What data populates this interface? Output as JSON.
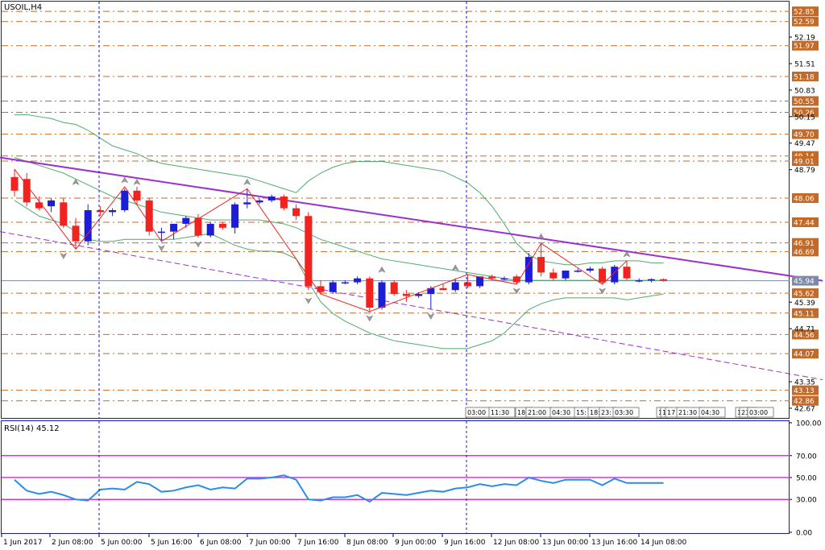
{
  "chart_data": [
    {
      "type": "candlestick",
      "title": "USOIL,H4",
      "ylim": [
        42.4,
        53.1
      ],
      "y_ticks": [
        52.19,
        51.51,
        50.83,
        50.15,
        49.47,
        48.79,
        45.39,
        44.71,
        43.35,
        42.67
      ],
      "level_labels": [
        52.85,
        52.59,
        51.97,
        51.18,
        50.55,
        50.26,
        49.7,
        49.14,
        49.01,
        48.06,
        47.44,
        46.91,
        46.69,
        45.62,
        45.11,
        44.56,
        44.07,
        43.13,
        42.86
      ],
      "current_price": 45.94,
      "x_labels": [
        "1 Jun 2017",
        "2 Jun 08:00",
        "5 Jun 00:00",
        "5 Jun 16:00",
        "6 Jun 08:00",
        "7 Jun 00:00",
        "7 Jun 16:00",
        "8 Jun 08:00",
        "9 Jun 00:00",
        "9 Jun 16:00",
        "12 Jun 08:00",
        "13 Jun 00:00",
        "13 Jun 16:00",
        "14 Jun 08:00"
      ],
      "time_tags": [
        "03:00",
        "11:30",
        "18:",
        "21:00",
        "04:30",
        "15:",
        "18:",
        "23:",
        "03:30",
        "1",
        "1",
        "17",
        "21:30",
        "04:30",
        "17:3",
        "23:",
        "03:00"
      ],
      "candles": [
        {
          "o": 48.6,
          "h": 48.8,
          "l": 48.1,
          "c": 48.25
        },
        {
          "o": 48.55,
          "h": 48.7,
          "l": 47.85,
          "c": 47.95
        },
        {
          "o": 47.95,
          "h": 48.1,
          "l": 47.75,
          "c": 47.8
        },
        {
          "o": 47.85,
          "h": 48.05,
          "l": 47.7,
          "c": 48.0
        },
        {
          "o": 47.95,
          "h": 48.05,
          "l": 47.3,
          "c": 47.35
        },
        {
          "o": 47.35,
          "h": 47.55,
          "l": 46.75,
          "c": 46.95
        },
        {
          "o": 46.95,
          "h": 47.9,
          "l": 46.85,
          "c": 47.75
        },
        {
          "o": 47.75,
          "h": 47.85,
          "l": 47.6,
          "c": 47.7
        },
        {
          "o": 47.7,
          "h": 47.8,
          "l": 47.6,
          "c": 47.75
        },
        {
          "o": 47.75,
          "h": 48.3,
          "l": 47.7,
          "c": 48.25
        },
        {
          "o": 48.25,
          "h": 48.35,
          "l": 47.9,
          "c": 48.0
        },
        {
          "o": 48.0,
          "h": 48.05,
          "l": 47.1,
          "c": 47.2
        },
        {
          "o": 47.2,
          "h": 47.3,
          "l": 46.95,
          "c": 47.2
        },
        {
          "o": 47.2,
          "h": 47.4,
          "l": 47.0,
          "c": 47.4
        },
        {
          "o": 47.4,
          "h": 47.6,
          "l": 47.3,
          "c": 47.55
        },
        {
          "o": 47.55,
          "h": 47.65,
          "l": 47.05,
          "c": 47.1
        },
        {
          "o": 47.1,
          "h": 47.45,
          "l": 47.05,
          "c": 47.4
        },
        {
          "o": 47.4,
          "h": 47.45,
          "l": 47.25,
          "c": 47.3
        },
        {
          "o": 47.3,
          "h": 47.95,
          "l": 47.15,
          "c": 47.9
        },
        {
          "o": 47.9,
          "h": 48.3,
          "l": 47.8,
          "c": 47.95
        },
        {
          "o": 47.95,
          "h": 48.05,
          "l": 47.9,
          "c": 48.0
        },
        {
          "o": 48.0,
          "h": 48.15,
          "l": 47.95,
          "c": 48.1
        },
        {
          "o": 48.1,
          "h": 48.15,
          "l": 47.75,
          "c": 47.8
        },
        {
          "o": 47.8,
          "h": 47.9,
          "l": 47.5,
          "c": 47.6
        },
        {
          "o": 47.6,
          "h": 47.7,
          "l": 45.7,
          "c": 45.8
        },
        {
          "o": 45.8,
          "h": 45.95,
          "l": 45.6,
          "c": 45.65
        },
        {
          "o": 45.65,
          "h": 45.95,
          "l": 45.6,
          "c": 45.9
        },
        {
          "o": 45.9,
          "h": 45.95,
          "l": 45.85,
          "c": 45.9
        },
        {
          "o": 45.9,
          "h": 46.05,
          "l": 45.85,
          "c": 46.0
        },
        {
          "o": 46.0,
          "h": 46.05,
          "l": 45.15,
          "c": 45.25
        },
        {
          "o": 45.25,
          "h": 45.95,
          "l": 45.2,
          "c": 45.9
        },
        {
          "o": 45.9,
          "h": 45.95,
          "l": 45.55,
          "c": 45.6
        },
        {
          "o": 45.6,
          "h": 45.7,
          "l": 45.4,
          "c": 45.55
        },
        {
          "o": 45.55,
          "h": 45.65,
          "l": 45.5,
          "c": 45.6
        },
        {
          "o": 45.6,
          "h": 45.8,
          "l": 45.2,
          "c": 45.75
        },
        {
          "o": 45.75,
          "h": 45.85,
          "l": 45.7,
          "c": 45.7
        },
        {
          "o": 45.7,
          "h": 46.0,
          "l": 45.65,
          "c": 45.9
        },
        {
          "o": 45.9,
          "h": 46.1,
          "l": 45.75,
          "c": 45.8
        },
        {
          "o": 45.8,
          "h": 46.05,
          "l": 45.75,
          "c": 46.05
        },
        {
          "o": 46.05,
          "h": 46.1,
          "l": 45.95,
          "c": 46.0
        },
        {
          "o": 46.0,
          "h": 46.05,
          "l": 45.95,
          "c": 46.0
        },
        {
          "o": 46.05,
          "h": 46.1,
          "l": 45.85,
          "c": 45.9
        },
        {
          "o": 45.9,
          "h": 46.65,
          "l": 45.85,
          "c": 46.55
        },
        {
          "o": 46.55,
          "h": 46.9,
          "l": 46.05,
          "c": 46.15
        },
        {
          "o": 46.15,
          "h": 46.25,
          "l": 45.95,
          "c": 46.0
        },
        {
          "o": 46.0,
          "h": 46.2,
          "l": 45.95,
          "c": 46.2
        },
        {
          "o": 46.2,
          "h": 46.25,
          "l": 46.15,
          "c": 46.2
        },
        {
          "o": 46.2,
          "h": 46.3,
          "l": 46.15,
          "c": 46.25
        },
        {
          "o": 46.25,
          "h": 46.3,
          "l": 45.85,
          "c": 45.9
        },
        {
          "o": 45.9,
          "h": 46.35,
          "l": 45.85,
          "c": 46.3
        },
        {
          "o": 46.3,
          "h": 46.45,
          "l": 45.95,
          "c": 46.0
        },
        {
          "o": 45.95,
          "h": 46.0,
          "l": 45.9,
          "c": 45.95
        },
        {
          "o": 45.95,
          "h": 46.0,
          "l": 45.9,
          "c": 45.98
        },
        {
          "o": 45.98,
          "h": 46.0,
          "l": 45.92,
          "c": 45.94
        }
      ],
      "bollinger": {
        "upper": [
          50.2,
          50.2,
          50.15,
          50.1,
          50.0,
          49.95,
          49.8,
          49.6,
          49.4,
          49.3,
          49.2,
          49.05,
          48.95,
          48.9,
          48.85,
          48.8,
          48.75,
          48.7,
          48.65,
          48.6,
          48.5,
          48.4,
          48.3,
          48.2,
          48.5,
          48.7,
          48.85,
          48.95,
          49.0,
          49.0,
          49.0,
          48.95,
          48.9,
          48.85,
          48.8,
          48.75,
          48.6,
          48.45,
          48.2,
          47.85,
          47.4,
          46.9,
          46.6,
          46.45,
          46.4,
          46.35,
          46.35,
          46.4,
          46.4,
          46.45,
          46.45,
          46.45,
          46.4,
          46.4
        ],
        "middle": [
          49.1,
          49.0,
          48.9,
          48.8,
          48.7,
          48.55,
          48.4,
          48.25,
          48.1,
          48.0,
          47.9,
          47.8,
          47.7,
          47.65,
          47.6,
          47.55,
          47.5,
          47.5,
          47.5,
          47.5,
          47.5,
          47.45,
          47.4,
          47.3,
          47.15,
          47.0,
          46.9,
          46.8,
          46.7,
          46.6,
          46.5,
          46.45,
          46.4,
          46.35,
          46.3,
          46.25,
          46.2,
          46.15,
          46.1,
          46.05,
          46.0,
          45.95,
          45.95,
          45.95,
          45.95,
          45.95,
          45.95,
          45.95,
          45.95,
          45.95,
          45.95,
          45.95,
          45.95,
          45.95
        ],
        "lower": [
          48.0,
          47.8,
          47.6,
          47.5,
          47.4,
          47.2,
          47.0,
          46.95,
          46.95,
          47.0,
          47.0,
          47.0,
          47.0,
          47.0,
          47.05,
          47.1,
          47.15,
          47.0,
          46.85,
          46.75,
          46.7,
          46.7,
          46.65,
          46.5,
          45.9,
          45.4,
          45.1,
          44.9,
          44.75,
          44.6,
          44.5,
          44.4,
          44.35,
          44.3,
          44.25,
          44.2,
          44.2,
          44.2,
          44.3,
          44.4,
          44.6,
          44.9,
          45.2,
          45.35,
          45.45,
          45.5,
          45.5,
          45.5,
          45.5,
          45.5,
          45.45,
          45.5,
          45.55,
          45.6
        ]
      },
      "zigzag": [
        {
          "i": 0,
          "p": 48.8
        },
        {
          "i": 5,
          "p": 46.75
        },
        {
          "i": 9,
          "p": 48.35
        },
        {
          "i": 12,
          "p": 46.95
        },
        {
          "i": 19,
          "p": 48.3
        },
        {
          "i": 25,
          "p": 45.6
        },
        {
          "i": 29,
          "p": 45.15
        },
        {
          "i": 37,
          "p": 46.1
        },
        {
          "i": 41,
          "p": 45.85
        },
        {
          "i": 43,
          "p": 46.9
        },
        {
          "i": 48,
          "p": 45.85
        },
        {
          "i": 50,
          "p": 46.45
        }
      ],
      "fractals_up": [
        {
          "i": 5,
          "p": 48.3
        },
        {
          "i": 9,
          "p": 48.35
        },
        {
          "i": 10,
          "p": 48.3
        },
        {
          "i": 19,
          "p": 48.3
        },
        {
          "i": 30,
          "p": 46.05
        },
        {
          "i": 36,
          "p": 46.1
        },
        {
          "i": 43,
          "p": 46.9
        },
        {
          "i": 50,
          "p": 46.45
        }
      ],
      "fractals_down": [
        {
          "i": 4,
          "p": 46.75
        },
        {
          "i": 12,
          "p": 46.95
        },
        {
          "i": 15,
          "p": 47.05
        },
        {
          "i": 24,
          "p": 45.6
        },
        {
          "i": 29,
          "p": 45.15
        },
        {
          "i": 34,
          "p": 45.2
        },
        {
          "i": 41,
          "p": 45.85
        },
        {
          "i": 48,
          "p": 45.85
        }
      ],
      "trend_solid": {
        "i1": 0,
        "p1": 49.1,
        "i2": 66,
        "p2": 45.94
      },
      "trend_dashed": {
        "i1": 0,
        "p1": 47.2,
        "i2": 66,
        "p2": 43.4
      },
      "colors": {
        "bull": "#1c1cd9",
        "bear": "#f0231f",
        "level": "#c46a26",
        "bollinger": "#4cad6b",
        "trend": "#9b30cf",
        "zigzag": "#f0231f",
        "grid": "#1414c8",
        "price_line": "#7d8aa8"
      }
    },
    {
      "type": "line",
      "title": "RSI(14) 45.12",
      "ylim": [
        0,
        100
      ],
      "y_ticks": [
        100.0,
        70.0,
        50.0,
        30.0,
        0.0
      ],
      "levels": [
        70,
        50,
        30
      ],
      "values": [
        48,
        38,
        35,
        37,
        34,
        30,
        29,
        39,
        40,
        39,
        46,
        44,
        37,
        38,
        41,
        43,
        39,
        41,
        40,
        49,
        49,
        50,
        52,
        48,
        30,
        29,
        32,
        32,
        34,
        28,
        36,
        35,
        34,
        36,
        38,
        37,
        40,
        41,
        44,
        42,
        44,
        43,
        50,
        47,
        45,
        48,
        48,
        48,
        43,
        49,
        45,
        45,
        45,
        45
      ],
      "colors": {
        "line": "#2a8ceb",
        "level": "#e030e0"
      }
    }
  ]
}
